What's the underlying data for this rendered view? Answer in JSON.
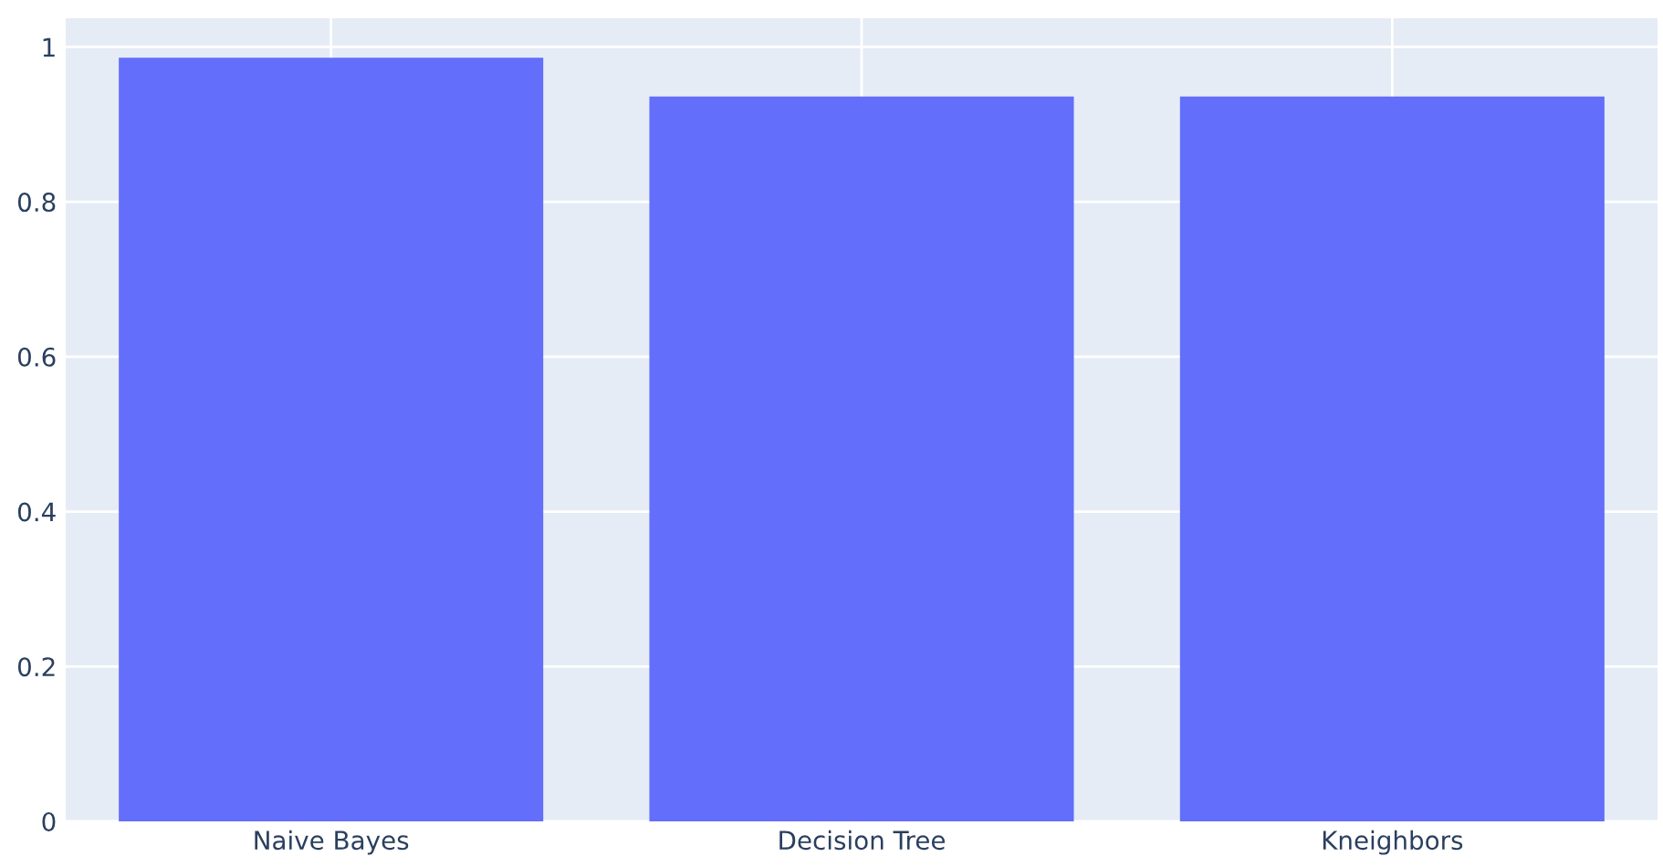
{
  "chart_data": {
    "type": "bar",
    "categories": [
      "Naive Bayes",
      "Decision Tree",
      "Kneighbors"
    ],
    "values": [
      0.986,
      0.936,
      0.936
    ],
    "color": "#636efa",
    "ylim": [
      0,
      1.037
    ],
    "yticks": [
      0,
      0.2,
      0.4,
      0.6,
      0.8,
      1
    ],
    "grid": true
  }
}
